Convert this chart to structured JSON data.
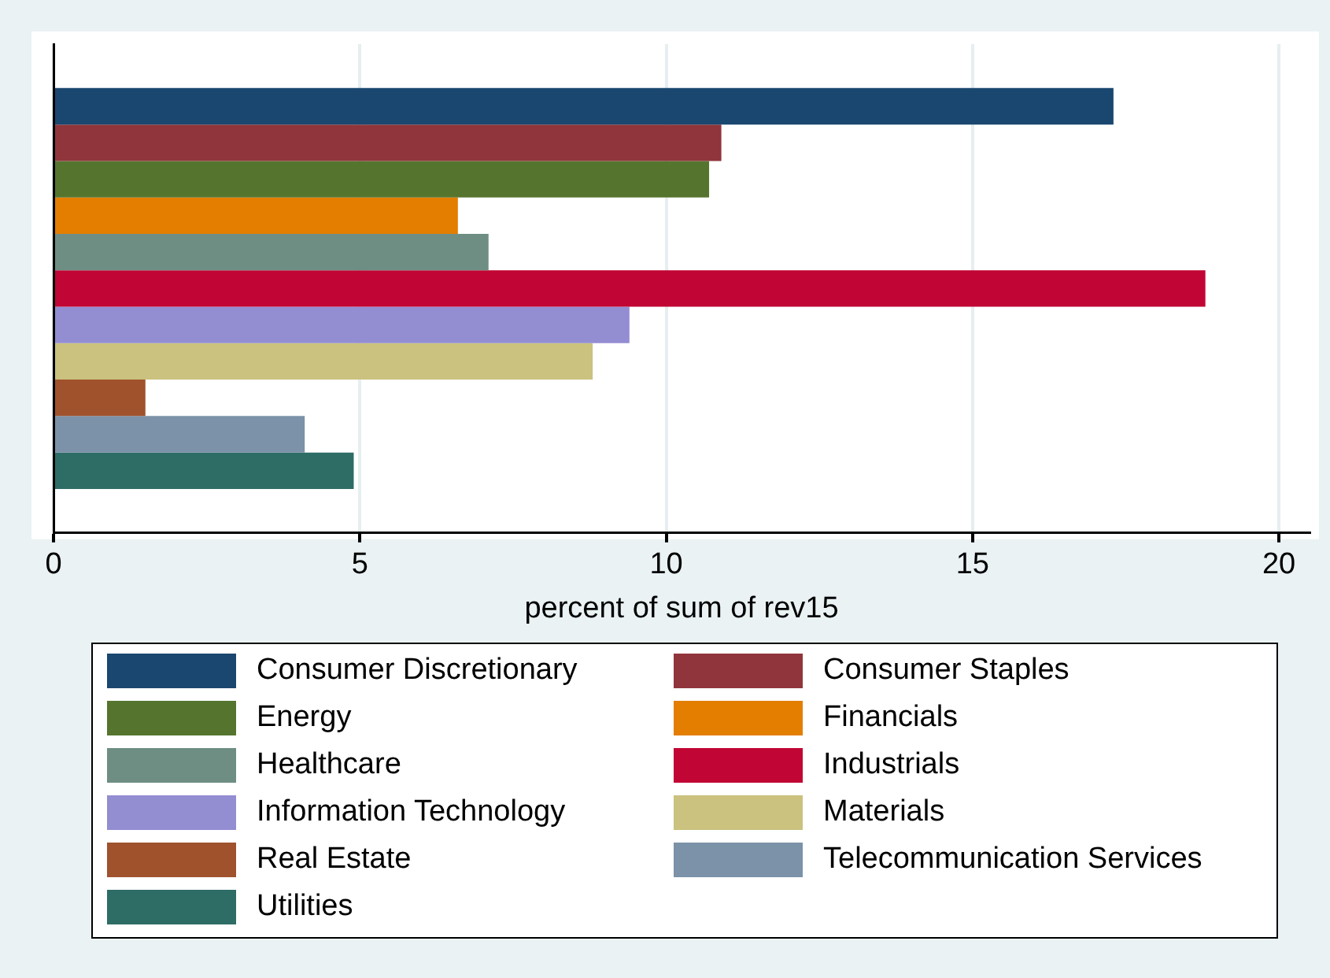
{
  "chart_data": {
    "type": "bar",
    "orientation": "horizontal",
    "xlabel": "percent of sum of rev15",
    "categories": [
      null
    ],
    "xlim": [
      0,
      20.5
    ],
    "xticks": [
      0,
      5,
      10,
      15,
      20
    ],
    "grid": "x",
    "legend": "bottom",
    "series": [
      {
        "name": "Consumer Discretionary",
        "color": "#1a476f",
        "values": [
          17.3
        ]
      },
      {
        "name": "Consumer Staples",
        "color": "#90353b",
        "values": [
          10.9
        ]
      },
      {
        "name": "Energy",
        "color": "#55752f",
        "values": [
          10.7
        ]
      },
      {
        "name": "Financials",
        "color": "#e37e00",
        "values": [
          6.6
        ]
      },
      {
        "name": "Healthcare",
        "color": "#6e8e84",
        "values": [
          7.1
        ]
      },
      {
        "name": "Industrials",
        "color": "#c10534",
        "values": [
          18.8
        ]
      },
      {
        "name": "Information Technology",
        "color": "#938dd2",
        "values": [
          9.4
        ]
      },
      {
        "name": "Materials",
        "color": "#cac27e",
        "values": [
          8.8
        ]
      },
      {
        "name": "Real Estate",
        "color": "#a0522d",
        "values": [
          1.5
        ]
      },
      {
        "name": "Telecommunication Services",
        "color": "#7b92a8",
        "values": [
          4.1
        ]
      },
      {
        "name": "Utilities",
        "color": "#2d6d66",
        "values": [
          4.9
        ]
      }
    ]
  }
}
